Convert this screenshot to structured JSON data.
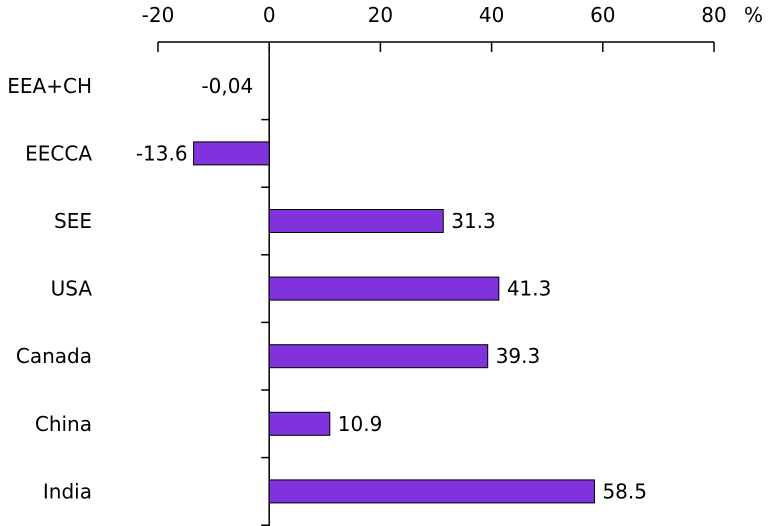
{
  "chart_data": {
    "type": "bar",
    "orientation": "horizontal",
    "categories": [
      "EEA+CH",
      "EECCA",
      "SEE",
      "USA",
      "Canada",
      "China",
      "India"
    ],
    "values": [
      -0.04,
      -13.6,
      31.3,
      41.3,
      39.3,
      10.9,
      58.5
    ],
    "data_labels": [
      "-0,04",
      "-13.6",
      "31.3",
      "41.3",
      "39.3",
      "10.9",
      "58.5"
    ],
    "x_ticks": [
      -20,
      0,
      20,
      40,
      60,
      80
    ],
    "x_tick_labels": [
      "-20",
      "0",
      "20",
      "40",
      "60",
      "80"
    ],
    "xlim": [
      -20,
      80
    ],
    "unit_label": "%",
    "x_axis_position": "top",
    "grid": false,
    "legend": "none",
    "bar_color": "#8033DD"
  }
}
